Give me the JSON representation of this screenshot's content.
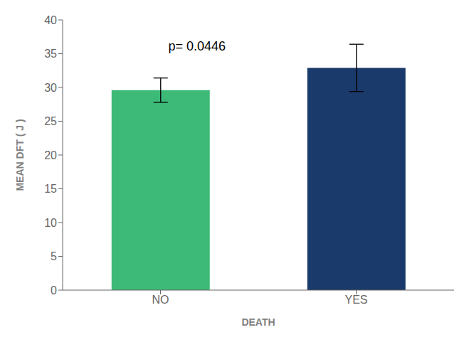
{
  "chart_data": {
    "type": "bar",
    "categories": [
      "NO",
      "YES"
    ],
    "values": [
      29.6,
      32.9
    ],
    "errors": [
      1.8,
      3.5
    ],
    "colors": [
      "#3dba78",
      "#1a3a6b"
    ],
    "xlabel": "DEATH",
    "ylabel": "MEAN DFT ( J )",
    "ylim": [
      0,
      40
    ],
    "yticks": [
      0,
      5,
      10,
      15,
      20,
      25,
      30,
      35,
      40
    ],
    "annotation": "p= 0.0446",
    "grid": false
  }
}
